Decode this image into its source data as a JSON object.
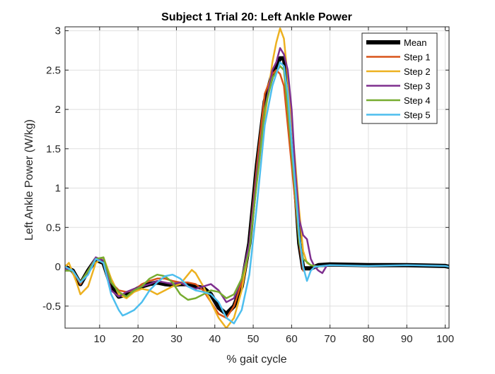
{
  "chart_data": {
    "type": "line",
    "title": "Subject 1 Trial 20: Left Ankle Power",
    "xlabel": "% gait cycle",
    "ylabel": "Left Ankle Power (W/kg)",
    "xlim": [
      1,
      101
    ],
    "ylim": [
      -0.78,
      3.05
    ],
    "xticks": [
      10,
      20,
      30,
      40,
      50,
      60,
      70,
      80,
      90,
      100
    ],
    "yticks": [
      -0.5,
      0,
      0.5,
      1,
      1.5,
      2,
      2.5,
      3
    ],
    "xtick_labels": [
      "10",
      "20",
      "30",
      "40",
      "50",
      "60",
      "70",
      "80",
      "90",
      "100"
    ],
    "ytick_labels": [
      "-0.5",
      "0",
      "0.5",
      "1",
      "1.5",
      "2",
      "2.5",
      "3"
    ],
    "grid": true,
    "legend_position": "top-right",
    "series": [
      {
        "name": "Mean",
        "color": "#000000",
        "width": 6,
        "x": [
          1,
          3,
          5,
          7,
          9,
          11,
          13,
          15,
          17,
          19,
          21,
          23,
          25,
          27,
          29,
          31,
          33,
          35,
          37,
          39,
          41,
          43,
          45,
          47,
          49,
          51,
          53,
          55,
          57,
          58,
          59,
          61,
          62,
          63,
          65,
          67,
          70,
          80,
          90,
          100,
          101
        ],
        "y": [
          0,
          -0.05,
          -0.22,
          -0.05,
          0.09,
          0.05,
          -0.25,
          -0.38,
          -0.35,
          -0.3,
          -0.25,
          -0.22,
          -0.2,
          -0.22,
          -0.23,
          -0.22,
          -0.22,
          -0.25,
          -0.27,
          -0.35,
          -0.52,
          -0.6,
          -0.5,
          -0.25,
          0.3,
          1.3,
          2.1,
          2.45,
          2.65,
          2.65,
          2.3,
          1.0,
          0.3,
          -0.02,
          -0.02,
          0.02,
          0.03,
          0.02,
          0.02,
          0.01,
          0
        ]
      },
      {
        "name": "Step 1",
        "color": "#d95319",
        "width": 2.5,
        "x": [
          1,
          3,
          5,
          7,
          9,
          11,
          13,
          15,
          17,
          19,
          21,
          23,
          25,
          27,
          29,
          31,
          33,
          35,
          37,
          39,
          41,
          43,
          45,
          47,
          49,
          51,
          53,
          55,
          56,
          57,
          58,
          59,
          61,
          62,
          63
        ],
        "y": [
          0,
          -0.05,
          -0.22,
          -0.05,
          0.1,
          0.05,
          -0.2,
          -0.3,
          -0.32,
          -0.3,
          -0.22,
          -0.18,
          -0.15,
          -0.15,
          -0.18,
          -0.2,
          -0.2,
          -0.22,
          -0.3,
          -0.45,
          -0.6,
          -0.65,
          -0.5,
          -0.2,
          0.3,
          1.3,
          2.2,
          2.45,
          2.5,
          2.45,
          2.3,
          1.8,
          0.8,
          0.3,
          -0.05
        ]
      },
      {
        "name": "Step 2",
        "color": "#edb120",
        "width": 2.5,
        "x": [
          1,
          2,
          4,
          5,
          7,
          9,
          11,
          13,
          15,
          17,
          19,
          21,
          23,
          25,
          27,
          29,
          31,
          33,
          34,
          35,
          37,
          39,
          41,
          43,
          45,
          47,
          49,
          51,
          53,
          55,
          56,
          57,
          58,
          59,
          61,
          62,
          63,
          64,
          65,
          66
        ],
        "y": [
          0,
          0.05,
          -0.2,
          -0.35,
          -0.25,
          0.05,
          0.12,
          -0.15,
          -0.35,
          -0.4,
          -0.32,
          -0.28,
          -0.3,
          -0.35,
          -0.3,
          -0.25,
          -0.22,
          -0.1,
          -0.04,
          -0.08,
          -0.25,
          -0.45,
          -0.65,
          -0.78,
          -0.65,
          -0.3,
          0.25,
          1.1,
          1.9,
          2.6,
          2.85,
          3.03,
          2.9,
          2.4,
          1.3,
          0.7,
          0.2,
          0.05,
          0.02,
          0.01
        ]
      },
      {
        "name": "Step 3",
        "color": "#7e2f8e",
        "width": 2.5,
        "x": [
          1,
          3,
          5,
          7,
          9,
          11,
          13,
          15,
          17,
          19,
          21,
          23,
          25,
          27,
          29,
          31,
          33,
          35,
          37,
          39,
          41,
          43,
          45,
          47,
          49,
          51,
          53,
          55,
          56,
          57,
          58,
          59,
          60,
          61,
          62,
          63,
          64,
          65,
          66,
          67,
          68,
          69
        ],
        "y": [
          -0.02,
          -0.05,
          -0.2,
          -0.05,
          0.12,
          0.08,
          -0.3,
          -0.38,
          -0.32,
          -0.28,
          -0.25,
          -0.22,
          -0.18,
          -0.2,
          -0.22,
          -0.2,
          -0.25,
          -0.28,
          -0.25,
          -0.22,
          -0.3,
          -0.45,
          -0.4,
          -0.15,
          0.3,
          1.2,
          2.0,
          2.5,
          2.6,
          2.78,
          2.7,
          2.5,
          2.0,
          1.2,
          0.6,
          0.4,
          0.35,
          0.1,
          0.0,
          -0.05,
          -0.08,
          0.0
        ]
      },
      {
        "name": "Step 4",
        "color": "#77ac30",
        "width": 2.5,
        "x": [
          1,
          3,
          5,
          7,
          9,
          11,
          13,
          15,
          17,
          19,
          21,
          23,
          25,
          27,
          29,
          31,
          33,
          35,
          37,
          39,
          41,
          43,
          45,
          47,
          49,
          51,
          53,
          55,
          57,
          58,
          59,
          61,
          62,
          63,
          65,
          67
        ],
        "y": [
          -0.05,
          -0.05,
          -0.2,
          -0.05,
          0.1,
          0.12,
          -0.2,
          -0.32,
          -0.38,
          -0.3,
          -0.25,
          -0.15,
          -0.1,
          -0.12,
          -0.2,
          -0.35,
          -0.42,
          -0.4,
          -0.35,
          -0.3,
          -0.32,
          -0.4,
          -0.35,
          -0.15,
          0.2,
          1.1,
          2.0,
          2.4,
          2.55,
          2.5,
          2.0,
          0.9,
          0.3,
          0.1,
          0.02,
          0.0
        ]
      },
      {
        "name": "Step 5",
        "color": "#4dbeee",
        "width": 2.5,
        "x": [
          1,
          3,
          5,
          7,
          9,
          11,
          13,
          15,
          16,
          17,
          19,
          21,
          23,
          25,
          27,
          29,
          31,
          33,
          35,
          37,
          39,
          41,
          43,
          45,
          47,
          49,
          51,
          53,
          55,
          57,
          58,
          59,
          61,
          62,
          63,
          64,
          65,
          66,
          68,
          70,
          80,
          90,
          100,
          101
        ],
        "y": [
          0,
          -0.05,
          -0.2,
          -0.1,
          0.1,
          0.05,
          -0.35,
          -0.55,
          -0.62,
          -0.6,
          -0.55,
          -0.45,
          -0.3,
          -0.2,
          -0.12,
          -0.1,
          -0.15,
          -0.25,
          -0.3,
          -0.32,
          -0.35,
          -0.45,
          -0.65,
          -0.72,
          -0.55,
          -0.1,
          0.8,
          1.8,
          2.3,
          2.6,
          2.55,
          2.2,
          1.0,
          0.4,
          0.0,
          -0.18,
          -0.05,
          0.0,
          0.01,
          0.02,
          0.01,
          0.02,
          0.01,
          0.0
        ]
      }
    ]
  }
}
